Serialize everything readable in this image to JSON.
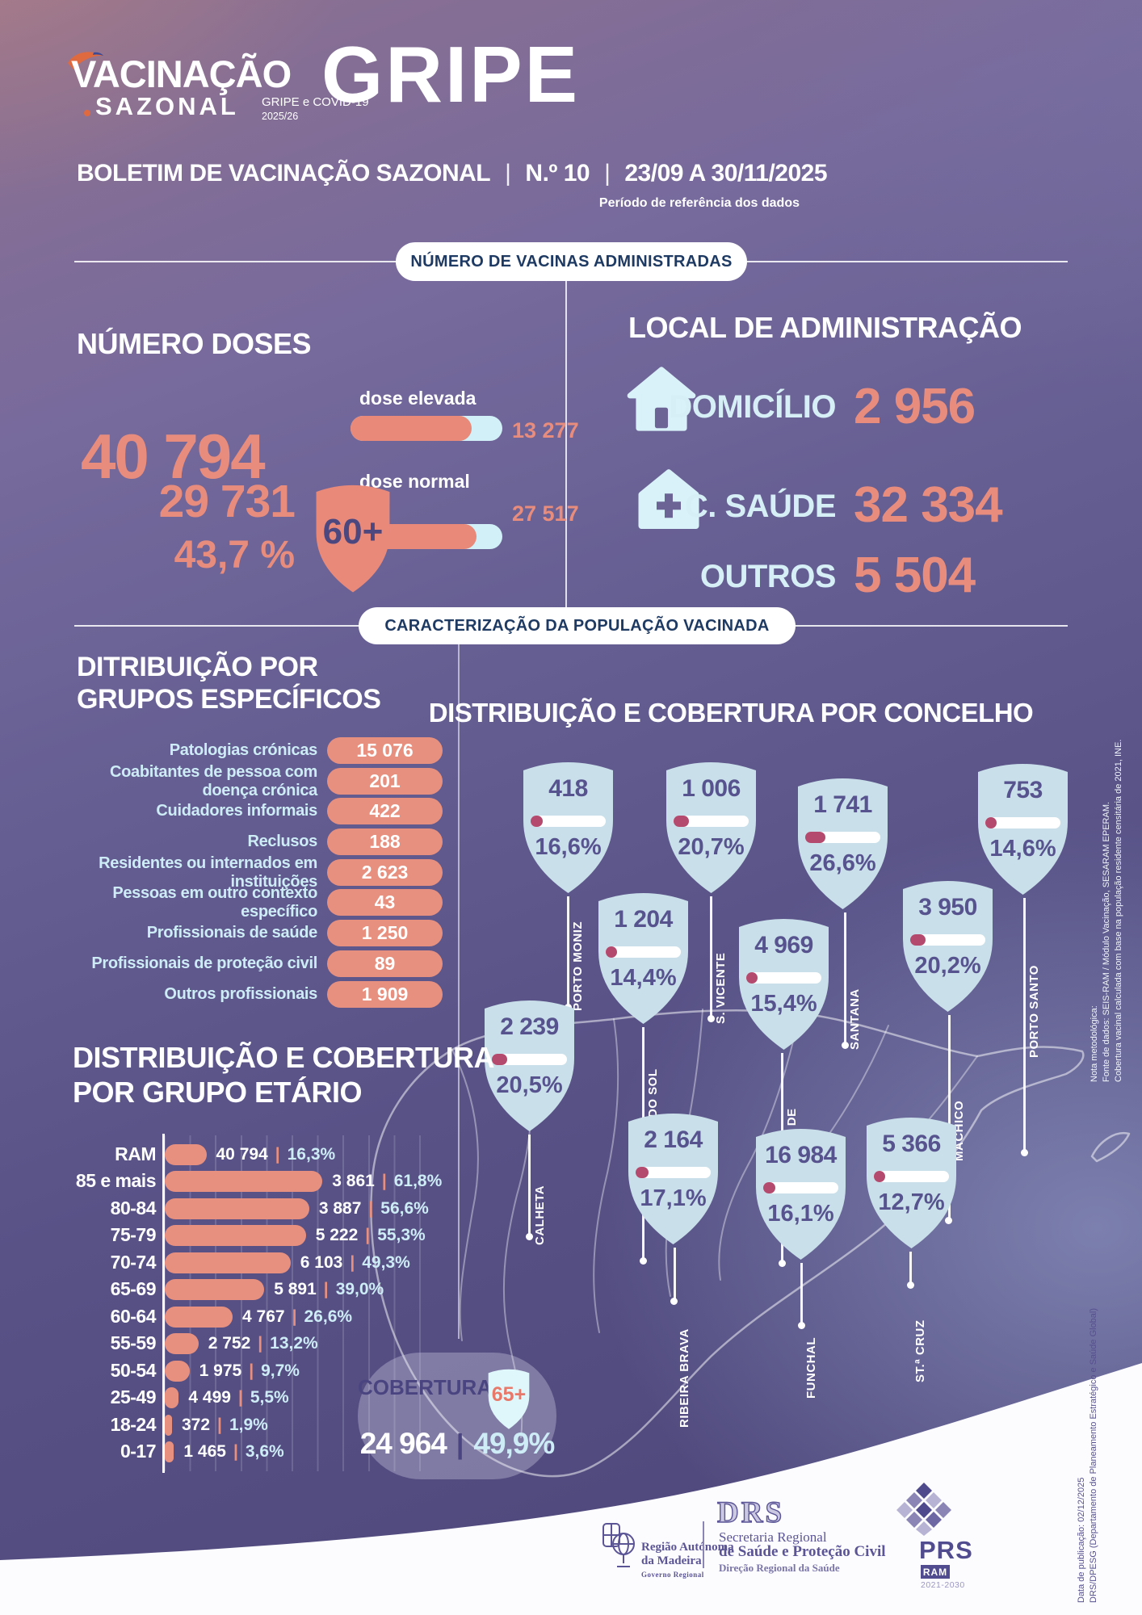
{
  "header": {
    "logo_line1": "VACINAÇÃO",
    "logo_line2": "SAZONAL",
    "logo_sub1": "GRIPE e COVID-19",
    "logo_sub2": "2025/26",
    "title": "GRIPE",
    "bulletin_label": "BOLETIM DE VACINAÇÃO SAZONAL",
    "sep": "|",
    "bulletin_number": "N.º 10",
    "bulletin_dates": "23/09 A 30/11/2025",
    "period_note": "Período de referência dos dados"
  },
  "section1_banner": "NÚMERO DE VACINAS ADMINISTRADAS",
  "section2_banner": "CARACTERIZAÇÃO DA POPULAÇÃO VACINADA",
  "doses": {
    "title": "NÚMERO DOSES",
    "total": "40 794",
    "bars": [
      {
        "label": "dose elevada",
        "value": "13 277"
      },
      {
        "label": "dose normal",
        "value": "27 517"
      }
    ],
    "age60": {
      "value": "29 731",
      "pct": "43,7 %",
      "badge": "60+"
    }
  },
  "local": {
    "title": "LOCAL DE ADMINISTRAÇÃO",
    "rows": [
      {
        "label": "DOMICÍLIO",
        "value": "2 956"
      },
      {
        "label": "C. SAÚDE",
        "value": "32 334"
      },
      {
        "label": "OUTROS",
        "value": "5 504"
      }
    ]
  },
  "groups": {
    "title_line1": "DITRIBUIÇÃO POR",
    "title_line2": "GRUPOS ESPECÍFICOS",
    "items": [
      {
        "label": "Patologias crónicas",
        "value": "15 076"
      },
      {
        "label": "Coabitantes de pessoa com doença crónica",
        "value": "201"
      },
      {
        "label": "Cuidadores informais",
        "value": "422"
      },
      {
        "label": "Reclusos",
        "value": "188"
      },
      {
        "label": "Residentes ou internados em instituições",
        "value": "2 623"
      },
      {
        "label": "Pessoas em outro contexto específico",
        "value": "43"
      },
      {
        "label": "Profissionais de saúde",
        "value": "1 250"
      },
      {
        "label": "Profissionais de proteção civil",
        "value": "89"
      },
      {
        "label": "Outros profissionais",
        "value": "1 909"
      }
    ]
  },
  "concelhos": {
    "title": "DISTRIBUIÇÃO E COBERTURA POR CONCELHO",
    "items": [
      {
        "name": "PORTO MONIZ",
        "value": "418",
        "pct": "16,6%",
        "pct_value": 16.6
      },
      {
        "name": "S. VICENTE",
        "value": "1 006",
        "pct": "20,7%",
        "pct_value": 20.7
      },
      {
        "name": "SANTANA",
        "value": "1 741",
        "pct": "26,6%",
        "pct_value": 26.6
      },
      {
        "name": "PORTO SANTO",
        "value": "753",
        "pct": "14,6%",
        "pct_value": 14.6
      },
      {
        "name": "PONTA DO SOL",
        "value": "1 204",
        "pct": "14,4%",
        "pct_value": 14.4
      },
      {
        "name": "CÂMARA DE\nLOBOS",
        "value": "4 969",
        "pct": "15,4%",
        "pct_value": 15.4
      },
      {
        "name": "MACHICO",
        "value": "3 950",
        "pct": "20,2%",
        "pct_value": 20.2
      },
      {
        "name": "CALHETA",
        "value": "2 239",
        "pct": "20,5%",
        "pct_value": 20.5
      },
      {
        "name": "RIBEIRA BRAVA",
        "value": "2 164",
        "pct": "17,1%",
        "pct_value": 17.1
      },
      {
        "name": "FUNCHAL",
        "value": "16 984",
        "pct": "16,1%",
        "pct_value": 16.1
      },
      {
        "name": "ST.ª CRUZ",
        "value": "5 366",
        "pct": "12,7%",
        "pct_value": 12.7
      }
    ]
  },
  "age_chart": {
    "title_line1": "DISTRIBUIÇÃO E COBERTURA",
    "title_line2": "POR GRUPO ETÁRIO",
    "rows": [
      {
        "label": "RAM",
        "value": "40 794",
        "pct": "16,3%",
        "pct_value": 16.3
      },
      {
        "label": "85 e mais",
        "value": "3 861",
        "pct": "61,8%",
        "pct_value": 61.8
      },
      {
        "label": "80-84",
        "value": "3 887",
        "pct": "56,6%",
        "pct_value": 56.6
      },
      {
        "label": "75-79",
        "value": "5 222",
        "pct": "55,3%",
        "pct_value": 55.3
      },
      {
        "label": "70-74",
        "value": "6 103",
        "pct": "49,3%",
        "pct_value": 49.3
      },
      {
        "label": "65-69",
        "value": "5 891",
        "pct": "39,0%",
        "pct_value": 39.0
      },
      {
        "label": "60-64",
        "value": "4 767",
        "pct": "26,6%",
        "pct_value": 26.6
      },
      {
        "label": "55-59",
        "value": "2 752",
        "pct": "13,2%",
        "pct_value": 13.2
      },
      {
        "label": "50-54",
        "value": "1 975",
        "pct": "9,7%",
        "pct_value": 9.7
      },
      {
        "label": "25-49",
        "value": "4 499",
        "pct": "5,5%",
        "pct_value": 5.5
      },
      {
        "label": "18-24",
        "value": "372",
        "pct": "1,9%",
        "pct_value": 1.9
      },
      {
        "label": "0-17",
        "value": "1 465",
        "pct": "3,6%",
        "pct_value": 3.6
      }
    ]
  },
  "coverage65": {
    "label": "COBERTURA",
    "badge": "65+",
    "value": "24 964",
    "sep": "|",
    "pct": "49,9%"
  },
  "notes": {
    "methodology": [
      "Nota metodológica:",
      "Fonte de dados: SEIS-RAM / Módulo Vacinação, SESARAM EPERAM.",
      "Cobertura vacinal calculada com base na população residente censitária de 2021, INE."
    ],
    "publication": [
      "Data de publicação: 02/12/2025",
      "DRS/DPESG (Departamento de Planeamento Estratégico e Saúde Global)"
    ]
  },
  "footer": {
    "ram": {
      "line1": "Região Autónoma",
      "line2": "da Madeira",
      "line3": "Governo Regional"
    },
    "drs": {
      "logo": "DRS",
      "line1": "Secretaria Regional",
      "line2": "de Saúde e Proteção Civil",
      "line3": "Direção Regional da Saúde"
    },
    "prs": {
      "name": "PRS",
      "region": "RAM",
      "years": "2021-2030"
    }
  }
}
